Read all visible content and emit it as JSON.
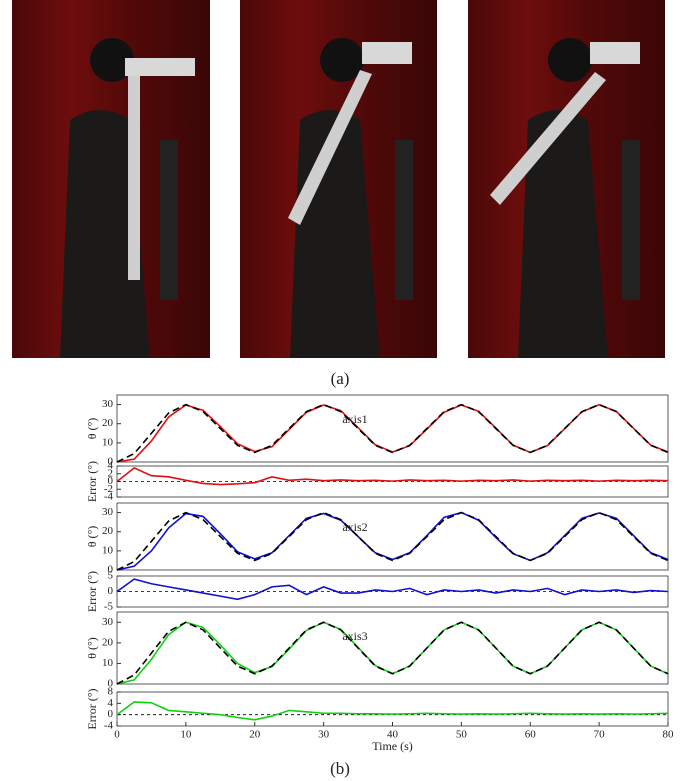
{
  "captions": {
    "a": "(a)",
    "b": "(b)"
  },
  "chart_data": [
    {
      "type": "line",
      "ylabel": "θ (°)",
      "annotation": "axis1",
      "xlim": [
        0,
        80
      ],
      "ylim": [
        0,
        35
      ],
      "yticks": [
        0,
        10,
        20,
        30
      ],
      "x": [
        0,
        2.5,
        5,
        7.5,
        10,
        12.5,
        15,
        17.5,
        20,
        22.5,
        25,
        27.5,
        30,
        32.5,
        35,
        37.5,
        40,
        42.5,
        45,
        47.5,
        50,
        52.5,
        55,
        57.5,
        60,
        62.5,
        65,
        67.5,
        70,
        72.5,
        75,
        77.5,
        80
      ],
      "series": [
        {
          "color": "#e01010",
          "linestyle": "solid",
          "values": [
            0,
            1.5,
            11,
            23.5,
            29.8,
            27,
            18.5,
            9.5,
            5.5,
            8,
            17,
            26,
            29.8,
            26.8,
            18,
            9,
            5.2,
            8.5,
            17.2,
            26,
            29.8,
            26.5,
            17.8,
            8.8,
            5,
            8.6,
            17.4,
            26.2,
            29.9,
            26.4,
            17.6,
            8.8,
            5.2
          ]
        },
        {
          "color": "#000000",
          "linestyle": "dashed",
          "values": [
            0,
            4.4,
            15,
            25.6,
            30,
            26.3,
            17.5,
            8.7,
            5,
            8.7,
            17.5,
            26.3,
            30,
            26.3,
            17.5,
            8.7,
            5,
            8.7,
            17.5,
            26.3,
            30,
            26.3,
            17.5,
            8.7,
            5,
            8.7,
            17.5,
            26.3,
            30,
            26.3,
            17.5,
            8.7,
            5
          ]
        }
      ]
    },
    {
      "type": "line",
      "ylabel": "Error (°)",
      "xlim": [
        0,
        80
      ],
      "ylim": [
        -4,
        4
      ],
      "yticks": [
        -4,
        -2,
        0,
        2,
        4
      ],
      "reference_line": 0,
      "x": [
        0,
        2.5,
        5,
        7.5,
        10,
        12.5,
        15,
        17.5,
        20,
        22.5,
        25,
        27.5,
        30,
        32.5,
        35,
        37.5,
        40,
        42.5,
        45,
        47.5,
        50,
        52.5,
        55,
        57.5,
        60,
        62.5,
        65,
        67.5,
        70,
        72.5,
        75,
        77.5,
        80
      ],
      "series": [
        {
          "color": "#e01010",
          "linestyle": "solid",
          "values": [
            0,
            3.5,
            1.5,
            1.2,
            0.3,
            -0.5,
            -0.8,
            -0.6,
            -0.3,
            1.2,
            0.3,
            0.6,
            0.2,
            0.4,
            0.2,
            0.3,
            0.1,
            0.4,
            0.2,
            0.3,
            0.1,
            0.3,
            0.2,
            0.4,
            0.1,
            0.3,
            0.2,
            0.3,
            0.1,
            0.3,
            0.2,
            0.3,
            0.2
          ]
        }
      ]
    },
    {
      "type": "line",
      "ylabel": "θ (°)",
      "annotation": "axis2",
      "xlim": [
        0,
        80
      ],
      "ylim": [
        0,
        35
      ],
      "yticks": [
        0,
        10,
        20,
        30
      ],
      "x": [
        0,
        2.5,
        5,
        7.5,
        10,
        12.5,
        15,
        17.5,
        20,
        22.5,
        25,
        27.5,
        30,
        32.5,
        35,
        37.5,
        40,
        42.5,
        45,
        47.5,
        50,
        52.5,
        55,
        57.5,
        60,
        62.5,
        65,
        67.5,
        70,
        72.5,
        75,
        77.5,
        80
      ],
      "series": [
        {
          "color": "#1010d0",
          "linestyle": "solid",
          "values": [
            0,
            2,
            10,
            22,
            29.5,
            28,
            19,
            9.5,
            5.8,
            9,
            18,
            27,
            29.5,
            26,
            17.5,
            9,
            5.5,
            9,
            18,
            27.5,
            30,
            26,
            17,
            8.5,
            5,
            9,
            18,
            27,
            29.8,
            27,
            18,
            9,
            5.5
          ]
        },
        {
          "color": "#000000",
          "linestyle": "dashed",
          "values": [
            0,
            4.4,
            15,
            25.6,
            30,
            26.3,
            17.5,
            8.7,
            5,
            8.7,
            17.5,
            26.3,
            30,
            26.3,
            17.5,
            8.7,
            5,
            8.7,
            17.5,
            26.3,
            30,
            26.3,
            17.5,
            8.7,
            5,
            8.7,
            17.5,
            26.3,
            30,
            26.3,
            17.5,
            8.7,
            5
          ]
        }
      ]
    },
    {
      "type": "line",
      "ylabel": "Error (°)",
      "xlim": [
        0,
        80
      ],
      "ylim": [
        -5,
        5
      ],
      "yticks": [
        -5,
        0,
        5
      ],
      "reference_line": 0,
      "x": [
        0,
        2.5,
        5,
        7.5,
        10,
        12.5,
        15,
        17.5,
        20,
        22.5,
        25,
        27.5,
        30,
        32.5,
        35,
        37.5,
        40,
        42.5,
        45,
        47.5,
        50,
        52.5,
        55,
        57.5,
        60,
        62.5,
        65,
        67.5,
        70,
        72.5,
        75,
        77.5,
        80
      ],
      "series": [
        {
          "color": "#1010d0",
          "linestyle": "solid",
          "values": [
            0,
            4,
            2.5,
            1.5,
            0.5,
            -0.5,
            -1.5,
            -2.5,
            -1,
            1.5,
            2,
            -1,
            1.5,
            -0.5,
            -0.5,
            0.5,
            0,
            1,
            -1,
            0.5,
            0,
            0.5,
            -0.5,
            0.5,
            0,
            1,
            -1,
            0.5,
            0,
            0.5,
            -0.3,
            0.3,
            0
          ]
        }
      ]
    },
    {
      "type": "line",
      "ylabel": "θ (°)",
      "annotation": "axis3",
      "xlim": [
        0,
        80
      ],
      "ylim": [
        0,
        35
      ],
      "yticks": [
        0,
        10,
        20,
        30
      ],
      "x": [
        0,
        2.5,
        5,
        7.5,
        10,
        12.5,
        15,
        17.5,
        20,
        22.5,
        25,
        27.5,
        30,
        32.5,
        35,
        37.5,
        40,
        42.5,
        45,
        47.5,
        50,
        52.5,
        55,
        57.5,
        60,
        62.5,
        65,
        67.5,
        70,
        72.5,
        75,
        77.5,
        80
      ],
      "series": [
        {
          "color": "#10d010",
          "linestyle": "solid",
          "values": [
            0,
            2,
            12,
            24,
            30,
            27.5,
            19,
            10,
            5.5,
            8.5,
            17,
            26,
            30,
            26.5,
            17.8,
            9,
            5,
            8.7,
            17.5,
            26.3,
            30,
            26.3,
            17.5,
            8.7,
            5,
            8.7,
            17.5,
            26.3,
            30,
            26.3,
            17.5,
            8.7,
            5
          ]
        },
        {
          "color": "#000000",
          "linestyle": "dashed",
          "values": [
            0,
            4.4,
            15,
            25.6,
            30,
            26.3,
            17.5,
            8.7,
            5,
            8.7,
            17.5,
            26.3,
            30,
            26.3,
            17.5,
            8.7,
            5,
            8.7,
            17.5,
            26.3,
            30,
            26.3,
            17.5,
            8.7,
            5,
            8.7,
            17.5,
            26.3,
            30,
            26.3,
            17.5,
            8.7,
            5
          ]
        }
      ]
    },
    {
      "type": "line",
      "ylabel": "Error (°)",
      "xlabel": "Time (s)",
      "xlim": [
        0,
        80
      ],
      "xticks": [
        0,
        10,
        20,
        30,
        40,
        50,
        60,
        70,
        80
      ],
      "ylim": [
        -4,
        8
      ],
      "yticks": [
        -4,
        0,
        4,
        8
      ],
      "reference_line": 0,
      "x": [
        0,
        2.5,
        5,
        7.5,
        10,
        12.5,
        15,
        17.5,
        20,
        22.5,
        25,
        27.5,
        30,
        32.5,
        35,
        37.5,
        40,
        42.5,
        45,
        47.5,
        50,
        52.5,
        55,
        57.5,
        60,
        62.5,
        65,
        67.5,
        70,
        72.5,
        75,
        77.5,
        80
      ],
      "series": [
        {
          "color": "#10d010",
          "linestyle": "solid",
          "values": [
            0,
            4.5,
            4.2,
            1.5,
            1,
            0.5,
            0,
            -1,
            -1.8,
            -0.5,
            1.5,
            1,
            0.5,
            0.5,
            0.3,
            0.3,
            0.2,
            0.3,
            0.5,
            0.3,
            0.2,
            0.3,
            0.2,
            0.3,
            0.5,
            0.3,
            0.2,
            0.3,
            0.2,
            0.3,
            0.2,
            0.3,
            0.5
          ]
        }
      ]
    }
  ]
}
